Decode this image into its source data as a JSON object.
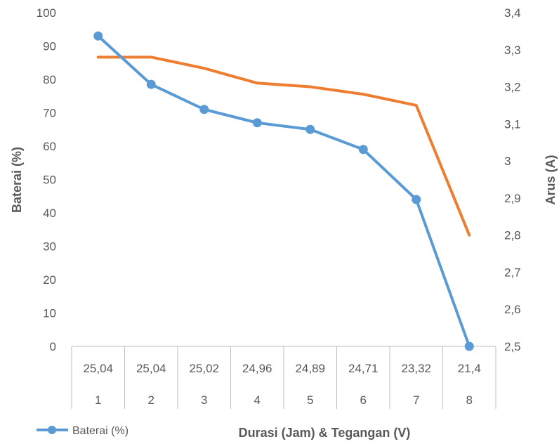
{
  "chart_data": {
    "type": "line",
    "x": [
      1,
      2,
      3,
      4,
      5,
      6,
      7,
      8
    ],
    "voltages": [
      "25,04",
      "25,04",
      "25,02",
      "24,96",
      "24,89",
      "24,71",
      "23,32",
      "21,4"
    ],
    "series": [
      {
        "name": "Baterai (%)",
        "axis": "left",
        "color": "#5B9BD5",
        "values": [
          93,
          78.5,
          71,
          67,
          65,
          59,
          44,
          0
        ]
      },
      {
        "axis": "right",
        "color": "#ED7D31",
        "values": [
          3.28,
          3.28,
          3.25,
          3.21,
          3.2,
          3.18,
          3.15,
          2.8
        ]
      }
    ],
    "y_left": {
      "label": "Baterai (%)",
      "ylim": [
        0,
        100
      ],
      "ticks": [
        "0",
        "10",
        "20",
        "30",
        "40",
        "50",
        "60",
        "70",
        "80",
        "90",
        "100"
      ]
    },
    "y_right": {
      "label": "Arus (A)",
      "ylim": [
        2.5,
        3.4
      ],
      "ticks": [
        "2,5",
        "2,6",
        "2,7",
        "2,8",
        "2,9",
        "3",
        "3,1",
        "3,2",
        "3,3",
        "3,4"
      ]
    },
    "xlabel": "Durasi (Jam) & Tegangan (V)",
    "legend": {
      "position": "bottom-left",
      "entries": [
        "Baterai (%)"
      ]
    },
    "grid": false
  }
}
